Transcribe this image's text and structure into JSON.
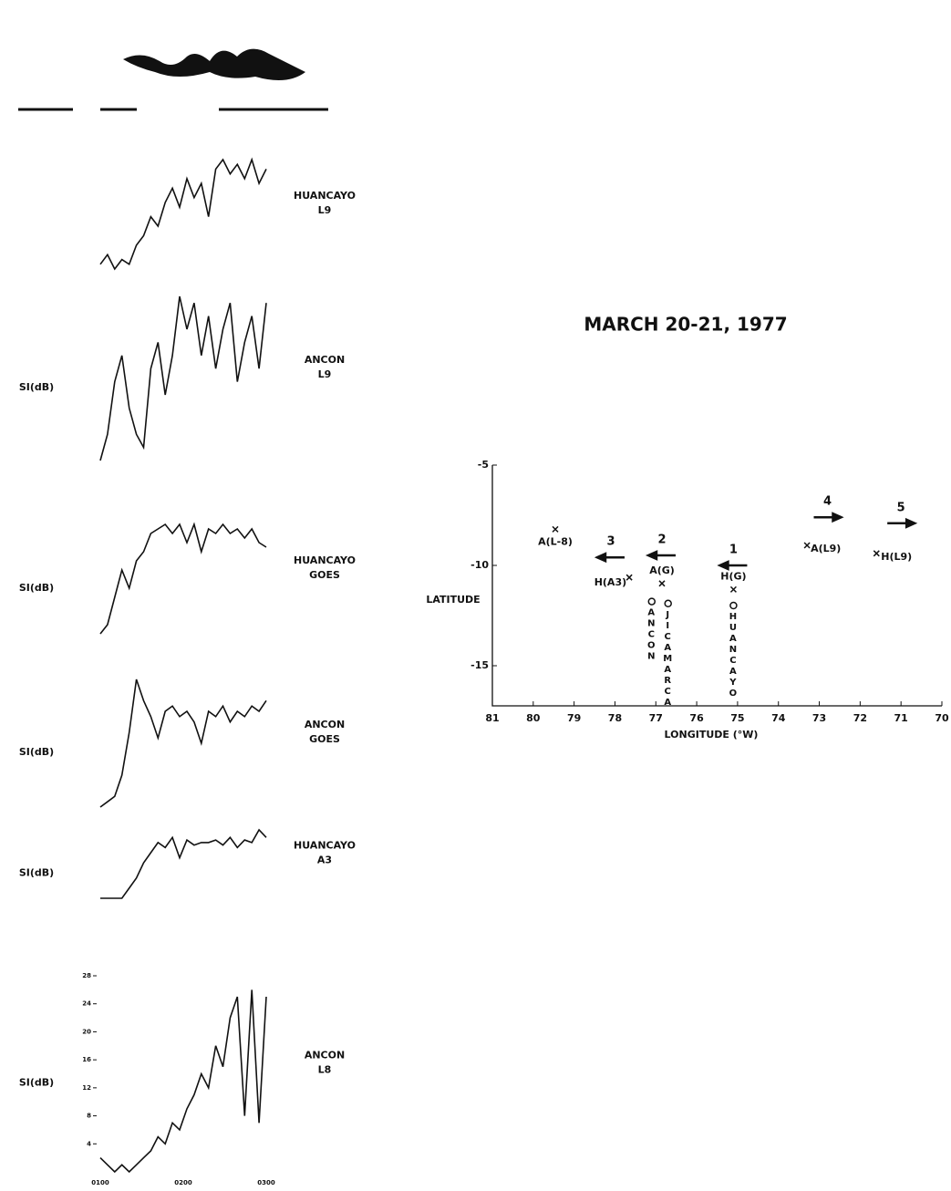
{
  "title": "MARCH 20-21, 1977",
  "panels": [
    {
      "label": [
        "HUANCAYO",
        "L9"
      ],
      "ylabel": null,
      "values": [
        2,
        4,
        1,
        3,
        2,
        6,
        8,
        12,
        10,
        15,
        18,
        14,
        20,
        16,
        19,
        12,
        22,
        24,
        21,
        23,
        20,
        24,
        19,
        22
      ]
    },
    {
      "label": [
        "ANCON",
        "L9"
      ],
      "ylabel": "SI(dB)",
      "values": [
        0,
        4,
        12,
        16,
        8,
        4,
        2,
        14,
        18,
        10,
        16,
        25,
        20,
        24,
        16,
        22,
        14,
        20,
        24,
        12,
        18,
        22,
        14,
        24
      ]
    },
    {
      "label": [
        "HUANCAYO",
        "GOES"
      ],
      "ylabel": "SI(dB)",
      "values": [
        0,
        2,
        8,
        14,
        10,
        16,
        18,
        22,
        23,
        24,
        22,
        24,
        20,
        24,
        18,
        23,
        22,
        24,
        22,
        23,
        21,
        23,
        20,
        19
      ]
    },
    {
      "label": [
        "ANCON",
        "GOES"
      ],
      "ylabel": "SI(dB)",
      "values": [
        0,
        1,
        2,
        6,
        14,
        24,
        20,
        17,
        13,
        18,
        19,
        17,
        18,
        16,
        12,
        18,
        17,
        19,
        16,
        18,
        17,
        19,
        18,
        20
      ]
    },
    {
      "label": [
        "HUANCAYO",
        "A3"
      ],
      "ylabel": "SI(dB)",
      "values": [
        0,
        0,
        0,
        0,
        4,
        8,
        14,
        18,
        22,
        20,
        24,
        16,
        23,
        21,
        22,
        22,
        23,
        21,
        24,
        20,
        23,
        22,
        27,
        24
      ]
    },
    {
      "label": [
        "ANCON",
        "L8"
      ],
      "ylabel": "SI(dB)",
      "values": [
        2,
        1,
        0,
        1,
        0,
        1,
        2,
        3,
        5,
        4,
        7,
        6,
        9,
        11,
        14,
        12,
        18,
        15,
        22,
        25,
        8,
        26,
        7,
        25
      ],
      "ylim": [
        0,
        28
      ],
      "yticks": [
        4,
        8,
        12,
        16,
        20,
        24,
        28
      ],
      "xticks": [
        "0100",
        "0200",
        "0300"
      ]
    }
  ],
  "map": {
    "ylabel": "LATITUDE",
    "xlabel": "LONGITUDE (°W)",
    "xlim": [
      81,
      70
    ],
    "xticks": [
      81,
      80,
      79,
      78,
      77,
      76,
      75,
      74,
      73,
      72,
      71,
      70
    ],
    "ylim": [
      -17,
      -5
    ],
    "yticks": [
      -5,
      -10,
      -15
    ],
    "points": [
      {
        "label": "A(L-8)",
        "x": 79.46,
        "y": -8.2
      },
      {
        "label": "H(A3)",
        "x": 77.65,
        "y": -10.6
      },
      {
        "label": "A(G)",
        "x": 76.85,
        "y": -10.9
      },
      {
        "label": "H(G)",
        "x": 75.1,
        "y": -11.2
      },
      {
        "label": "A(L9)",
        "x": 73.3,
        "y": -9.0
      },
      {
        "label": "H(L9)",
        "x": 71.6,
        "y": -9.4
      }
    ],
    "arrows": [
      {
        "label": "1",
        "x": 75.1,
        "y": -10.0,
        "direction": "west"
      },
      {
        "label": "2",
        "x": 76.85,
        "y": -9.5,
        "direction": "west"
      },
      {
        "label": "3",
        "x": 78.1,
        "y": -9.6,
        "direction": "west"
      },
      {
        "label": "4",
        "x": 72.8,
        "y": -7.6,
        "direction": "east"
      },
      {
        "label": "5",
        "x": 71.0,
        "y": -7.9,
        "direction": "east"
      }
    ],
    "stations": [
      {
        "label": "ANCON",
        "x": 77.1,
        "y": -11.8
      },
      {
        "label": "JICAMARCA",
        "x": 76.7,
        "y": -11.9
      },
      {
        "label": "HUANCAYO",
        "x": 75.1,
        "y": -12.0
      }
    ]
  }
}
